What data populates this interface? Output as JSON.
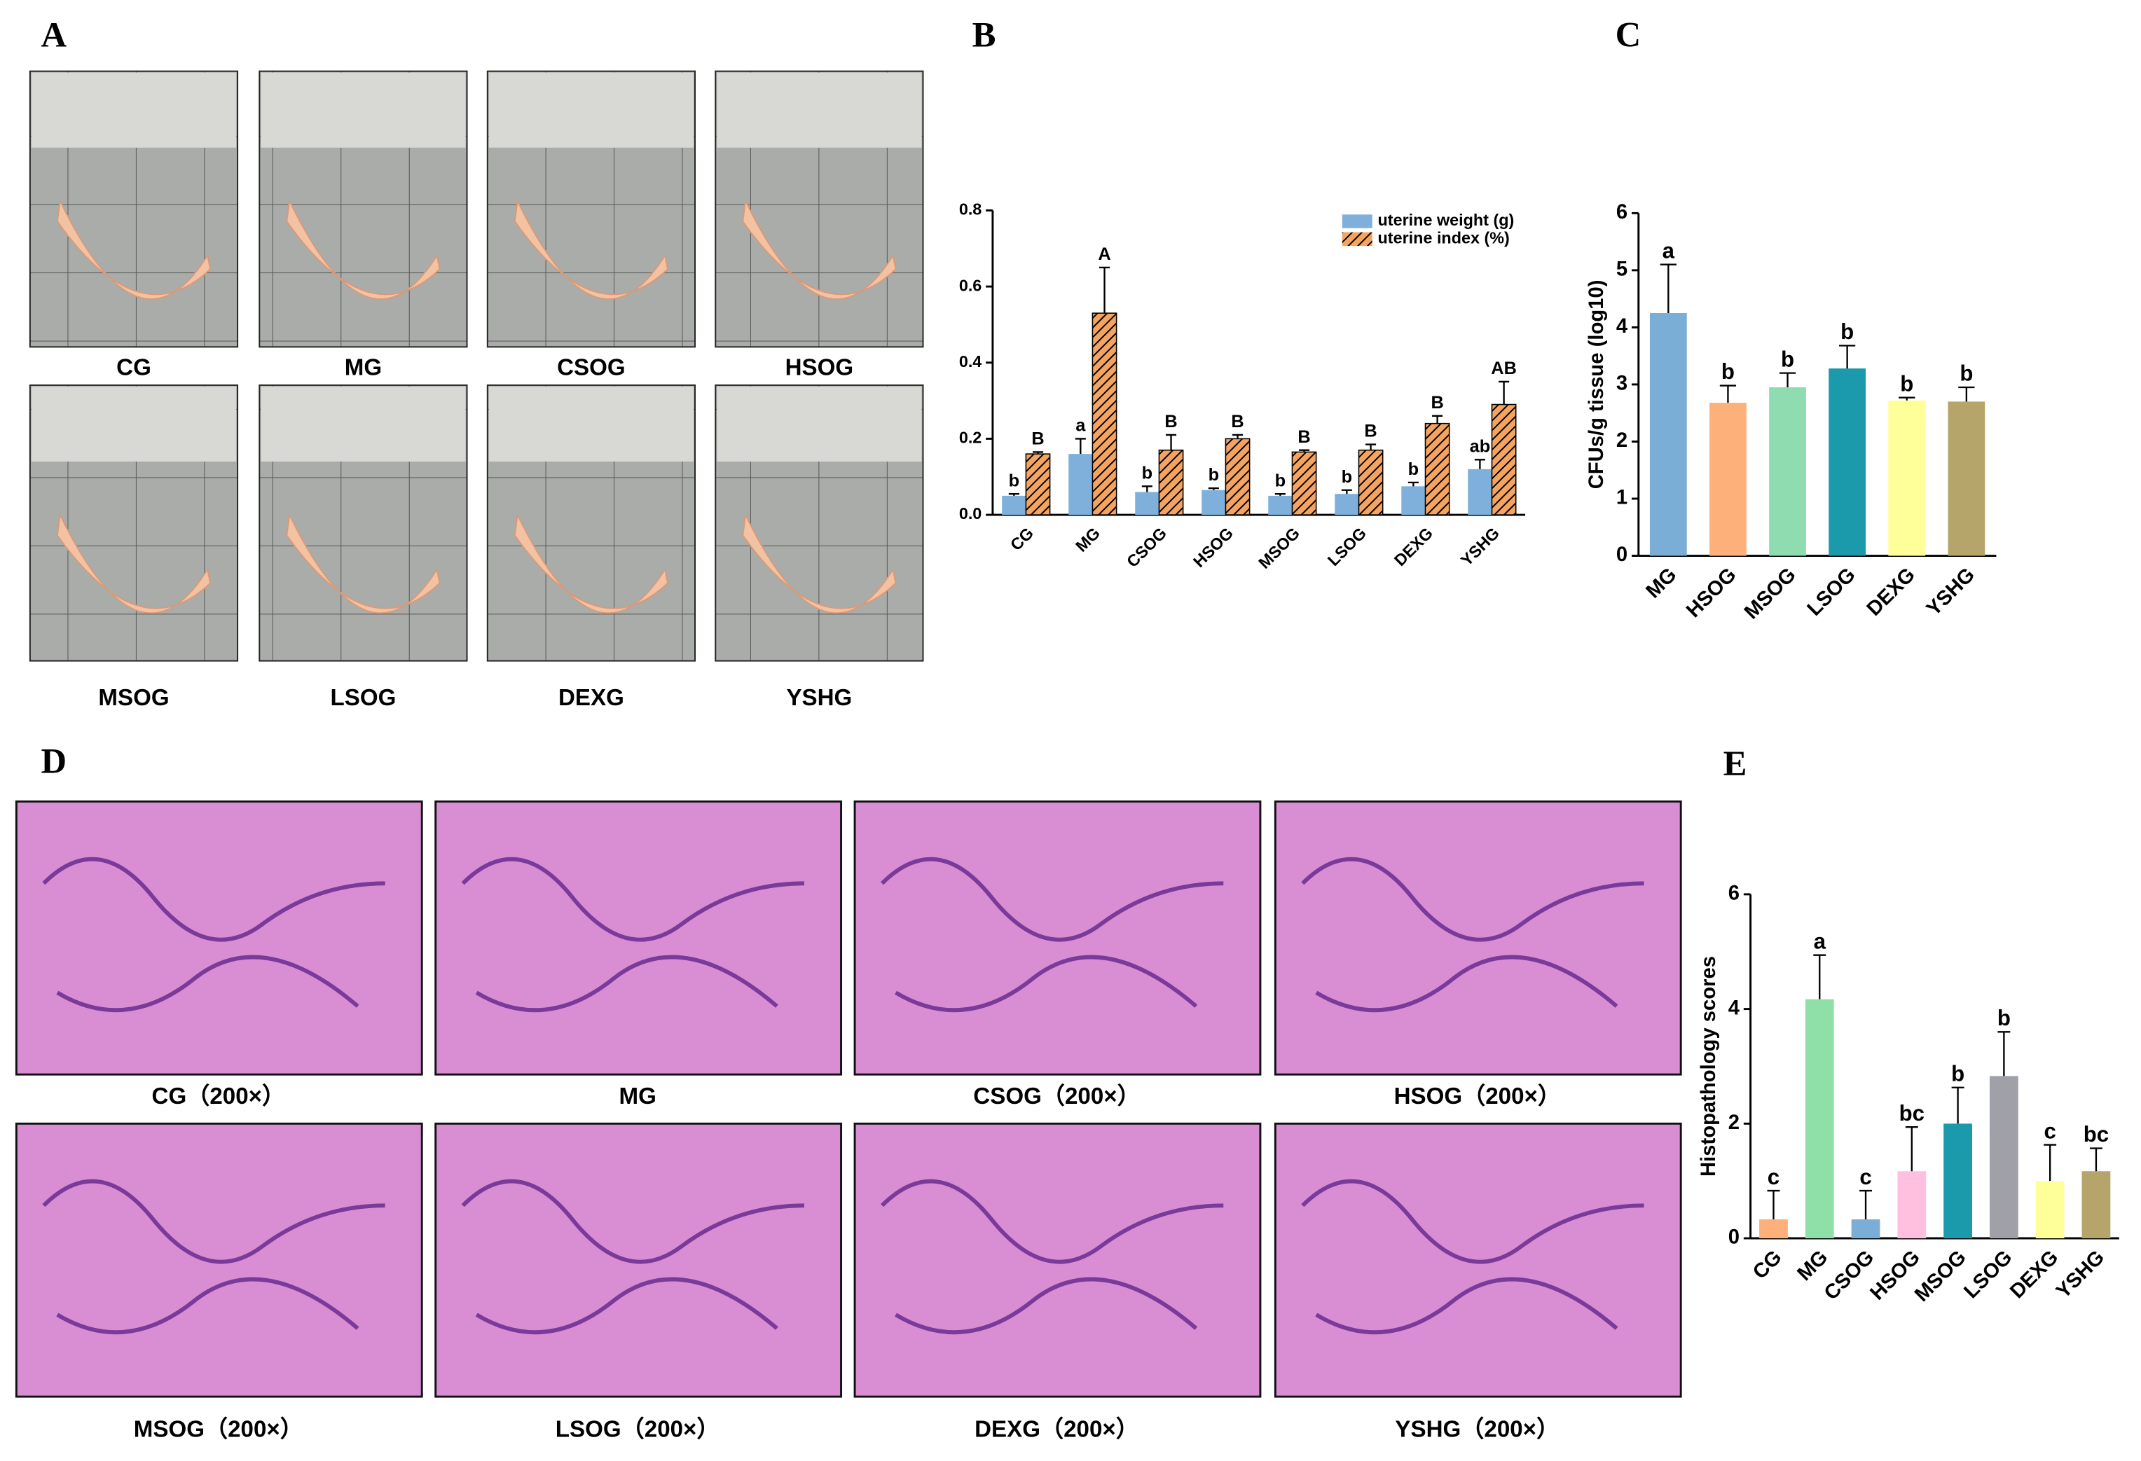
{
  "panel_labels": [
    "A",
    "B",
    "C",
    "D",
    "E"
  ],
  "photos_A": [
    "CG",
    "MG",
    "CSOG",
    "HSOG",
    "MSOG",
    "LSOG",
    "DEXG",
    "YSHG"
  ],
  "photos_D": [
    "CG（200×）",
    "MG",
    "CSOG（200×）",
    "HSOG（200×）",
    "MSOG（200×）",
    "LSOG（200×）",
    "DEXG（200×）",
    "YSHG（200×）"
  ],
  "chart_data": [
    {
      "type": "bar",
      "categories": [
        "CG",
        "MG",
        "CSOG",
        "HSOG",
        "MSOG",
        "LSOG",
        "DEXG",
        "YSHG"
      ],
      "series": [
        {
          "name": "uterine weight (g)",
          "color": "#7fb0dc",
          "hatch": false,
          "values": [
            0.05,
            0.16,
            0.06,
            0.065,
            0.05,
            0.055,
            0.075,
            0.12
          ],
          "errors": [
            0.005,
            0.04,
            0.015,
            0.005,
            0.005,
            0.01,
            0.01,
            0.025
          ],
          "letters": [
            "b",
            "a",
            "b",
            "b",
            "b",
            "b",
            "b",
            "ab"
          ]
        },
        {
          "name": "uterine index (%)",
          "color": "#f4a460",
          "hatch": true,
          "values": [
            0.16,
            0.53,
            0.17,
            0.2,
            0.165,
            0.17,
            0.24,
            0.29
          ],
          "errors": [
            0.005,
            0.12,
            0.04,
            0.01,
            0.005,
            0.015,
            0.02,
            0.06
          ],
          "letters": [
            "B",
            "A",
            "B",
            "B",
            "B",
            "B",
            "B",
            "AB"
          ]
        }
      ],
      "ylim": [
        0,
        0.8
      ],
      "yticks": [
        {
          "value": 0,
          "label": "0.0"
        },
        0.2,
        0.4,
        0.6,
        0.8
      ],
      "legend": "top-right"
    },
    {
      "type": "bar",
      "ylabel": "CFUs/g tissue (log10)",
      "categories": [
        "MG",
        "HSOG",
        "MSOG",
        "LSOG",
        "DEXG",
        "YSHG"
      ],
      "series": [
        {
          "colors": [
            "#7aaed6",
            "#fdb07a",
            "#8fdcb0",
            "#1a9aab",
            "#ffff99",
            "#b5a56a"
          ],
          "values": [
            4.25,
            2.68,
            2.95,
            3.28,
            2.72,
            2.7
          ],
          "errors": [
            0.85,
            0.3,
            0.25,
            0.4,
            0.05,
            0.25
          ],
          "letters": [
            "a",
            "b",
            "b",
            "b",
            "b",
            "b"
          ]
        }
      ],
      "ylim": [
        0,
        6
      ],
      "yticks": [
        0,
        1,
        2,
        3,
        4,
        5,
        6
      ]
    },
    {
      "type": "bar",
      "ylabel": "Histopathology scores",
      "categories": [
        "CG",
        "MG",
        "CSOG",
        "HSOG",
        "MSOG",
        "LSOG",
        "DEXG",
        "YSHG"
      ],
      "series": [
        {
          "colors": [
            "#fdb07a",
            "#8fe0a8",
            "#7aaed6",
            "#ffc0e0",
            "#1a9aab",
            "#a0a0a8",
            "#ffff99",
            "#b5a56a"
          ],
          "values": [
            0.33,
            4.17,
            0.33,
            1.17,
            2.0,
            2.83,
            1.0,
            1.17
          ],
          "errors": [
            0.5,
            0.77,
            0.5,
            0.77,
            0.63,
            0.77,
            0.63,
            0.4
          ],
          "letters": [
            "c",
            "a",
            "c",
            "bc",
            "b",
            "b",
            "c",
            "bc"
          ]
        }
      ],
      "ylim": [
        0,
        6
      ],
      "yticks": [
        0,
        2,
        4,
        6
      ]
    }
  ]
}
